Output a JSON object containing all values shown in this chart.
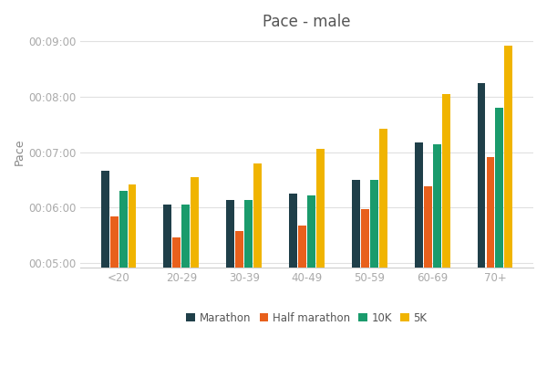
{
  "title": "Pace - male",
  "ylabel": "Pace",
  "categories": [
    "<20",
    "20-29",
    "30-39",
    "40-49",
    "50-59",
    "60-69",
    "70+"
  ],
  "series": {
    "Marathon": [
      400,
      363,
      368,
      375,
      390,
      430,
      495
    ],
    "Half marathon": [
      350,
      328,
      335,
      340,
      358,
      383,
      415
    ],
    "10K": [
      378,
      363,
      368,
      373,
      390,
      428,
      468
    ],
    "5K": [
      385,
      393,
      408,
      423,
      445,
      483,
      535
    ]
  },
  "colors": {
    "Marathon": "#1f3f49",
    "Half marathon": "#e8601c",
    "10K": "#1a9b6c",
    "5K": "#f0b400"
  },
  "ylim_min": 295,
  "ylim_max": 545,
  "yticks": [
    300,
    360,
    420,
    480,
    540
  ],
  "ytick_labels": [
    "00:05:00",
    "00:06:00",
    "00:07:00",
    "00:08:00",
    "00:09:00"
  ],
  "background_color": "#ffffff",
  "grid_color": "#e0e0e0"
}
